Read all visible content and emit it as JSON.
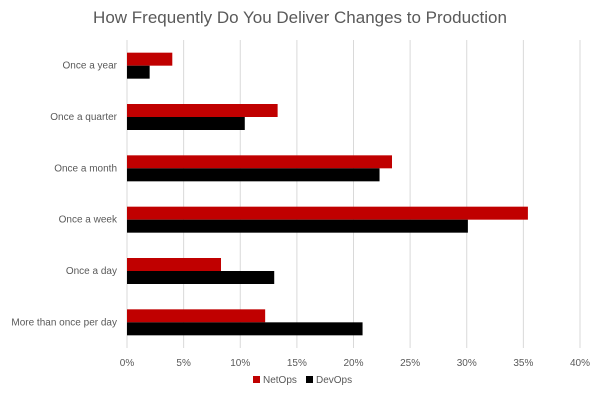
{
  "chart_data": {
    "type": "bar",
    "orientation": "horizontal",
    "title": "How Frequently Do You Deliver Changes to Production",
    "categories": [
      "Once a year",
      "Once a quarter",
      "Once a month",
      "Once a week",
      "Once a day",
      "More than once per day"
    ],
    "series": [
      {
        "name": "NetOps",
        "color": "#C00000",
        "values": [
          4.0,
          13.3,
          23.4,
          35.4,
          8.3,
          12.2
        ]
      },
      {
        "name": "DevOps",
        "color": "#000000",
        "values": [
          2.0,
          10.4,
          22.3,
          30.1,
          13.0,
          20.8
        ]
      }
    ],
    "xlim": [
      0,
      40
    ],
    "xticks": [
      "0%",
      "5%",
      "10%",
      "15%",
      "20%",
      "25%",
      "30%",
      "35%",
      "40%"
    ],
    "grid": "vertical",
    "legend": "bottom"
  }
}
